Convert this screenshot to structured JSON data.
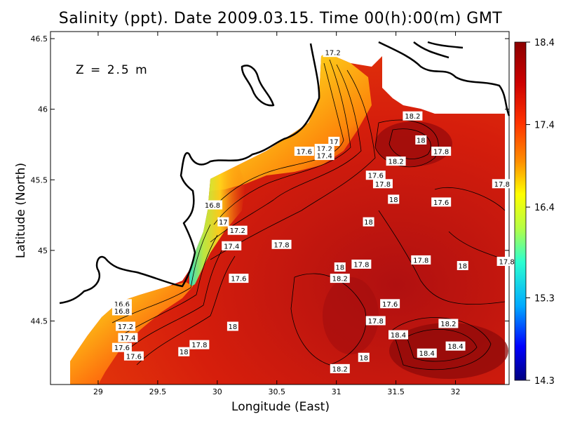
{
  "title": "Salinity (ppt). Date 2009.03.15. Time 00(h):00(m) GMT",
  "depth_label": "Z = 2.5 m",
  "chart_data": {
    "type": "heatmap",
    "variable": "Salinity (ppt)",
    "date": "2009.03.15",
    "time": "00(h):00(m) GMT",
    "depth": "2.5 m",
    "xlabel": "Longitude (East)",
    "ylabel": "Latitude (North)",
    "xlim": [
      28.6,
      32.45
    ],
    "ylim": [
      44.05,
      46.55
    ],
    "x_ticks": [
      "29",
      "29.5",
      "30",
      "30.5",
      "31",
      "31.5",
      "32"
    ],
    "y_ticks": [
      "44.5",
      "45",
      "45.5",
      "46",
      "46.5"
    ],
    "colorbar": {
      "min": 14.3,
      "max": 18.4,
      "ticks": [
        "18.4",
        "17.4",
        "16.4",
        "15.3",
        "14.3"
      ],
      "tick_values": [
        18.4,
        17.4,
        16.4,
        15.3,
        14.3
      ],
      "colors": [
        "#00007f",
        "#0000ff",
        "#00aaff",
        "#2cffd0",
        "#b5ff45",
        "#ffff00",
        "#ffa500",
        "#ff3300",
        "#cc0000",
        "#7f0000"
      ]
    },
    "contour_labels": [
      {
        "text": "17.2",
        "lon": 30.97,
        "lat": 46.4
      },
      {
        "text": "18.2",
        "lon": 31.64,
        "lat": 45.95
      },
      {
        "text": "18",
        "lon": 31.71,
        "lat": 45.78
      },
      {
        "text": "17.8",
        "lon": 31.88,
        "lat": 45.7
      },
      {
        "text": "17",
        "lon": 30.98,
        "lat": 45.77
      },
      {
        "text": "17.2",
        "lon": 30.9,
        "lat": 45.72
      },
      {
        "text": "17.4",
        "lon": 30.9,
        "lat": 45.67
      },
      {
        "text": "17.6",
        "lon": 30.73,
        "lat": 45.7
      },
      {
        "text": "18.2",
        "lon": 31.5,
        "lat": 45.63
      },
      {
        "text": "17.6",
        "lon": 31.33,
        "lat": 45.53
      },
      {
        "text": "17.8",
        "lon": 31.39,
        "lat": 45.47
      },
      {
        "text": "18",
        "lon": 31.48,
        "lat": 45.36
      },
      {
        "text": "17.8",
        "lon": 32.39,
        "lat": 45.47
      },
      {
        "text": "17.6",
        "lon": 31.88,
        "lat": 45.34
      },
      {
        "text": "16.8",
        "lon": 29.96,
        "lat": 45.32
      },
      {
        "text": "17",
        "lon": 30.05,
        "lat": 45.2
      },
      {
        "text": "17.2",
        "lon": 30.17,
        "lat": 45.14
      },
      {
        "text": "18",
        "lon": 31.27,
        "lat": 45.2
      },
      {
        "text": "17.4",
        "lon": 30.12,
        "lat": 45.03
      },
      {
        "text": "17.8",
        "lon": 30.54,
        "lat": 45.04
      },
      {
        "text": "17.8",
        "lon": 31.21,
        "lat": 44.9
      },
      {
        "text": "17.8",
        "lon": 31.71,
        "lat": 44.93
      },
      {
        "text": "18",
        "lon": 32.06,
        "lat": 44.89
      },
      {
        "text": "17.8",
        "lon": 32.43,
        "lat": 44.92
      },
      {
        "text": "18",
        "lon": 31.03,
        "lat": 44.88
      },
      {
        "text": "18.2",
        "lon": 31.03,
        "lat": 44.8
      },
      {
        "text": "17.6",
        "lon": 30.18,
        "lat": 44.8
      },
      {
        "text": "17.6",
        "lon": 31.45,
        "lat": 44.62
      },
      {
        "text": "16.6",
        "lon": 29.2,
        "lat": 44.62
      },
      {
        "text": "16.8",
        "lon": 29.2,
        "lat": 44.57
      },
      {
        "text": "17.8",
        "lon": 31.33,
        "lat": 44.5
      },
      {
        "text": "18.2",
        "lon": 31.94,
        "lat": 44.48
      },
      {
        "text": "17.2",
        "lon": 29.23,
        "lat": 44.46
      },
      {
        "text": "18",
        "lon": 30.13,
        "lat": 44.46
      },
      {
        "text": "18.4",
        "lon": 31.52,
        "lat": 44.4
      },
      {
        "text": "17.4",
        "lon": 29.25,
        "lat": 44.38
      },
      {
        "text": "17.8",
        "lon": 29.85,
        "lat": 44.33
      },
      {
        "text": "17.6",
        "lon": 29.2,
        "lat": 44.31
      },
      {
        "text": "18",
        "lon": 29.72,
        "lat": 44.28
      },
      {
        "text": "18.4",
        "lon": 32.0,
        "lat": 44.32
      },
      {
        "text": "18.4",
        "lon": 31.76,
        "lat": 44.27
      },
      {
        "text": "17.6",
        "lon": 29.3,
        "lat": 44.25
      },
      {
        "text": "18",
        "lon": 31.23,
        "lat": 44.24
      },
      {
        "text": "18.2",
        "lon": 31.03,
        "lat": 44.16
      }
    ]
  }
}
